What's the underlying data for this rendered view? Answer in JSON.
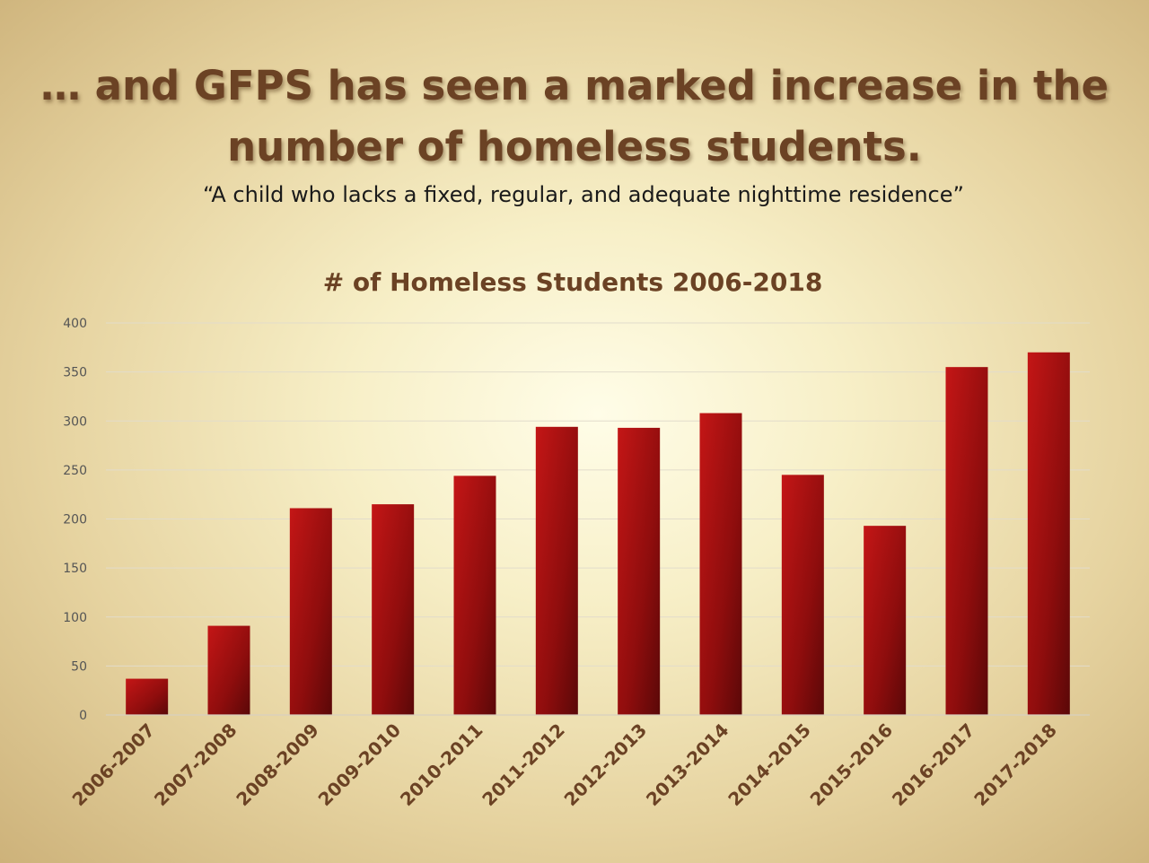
{
  "slide": {
    "title_line1": "… and GFPS has seen a marked increase in the",
    "title_line2": "number of homeless students.",
    "subtitle": "“A child who lacks a fixed, regular, and adequate nighttime residence”"
  },
  "chart_data": {
    "type": "bar",
    "title": "# of Homeless Students 2006-2018",
    "xlabel": "",
    "ylabel": "",
    "categories": [
      "2006-2007",
      "2007-2008",
      "2008-2009",
      "2009-2010",
      "2010-2011",
      "2011-2012",
      "2012-2013",
      "2013-2014",
      "2014-2015",
      "2015-2016",
      "2016-2017",
      "2017-2018"
    ],
    "values": [
      37,
      91,
      211,
      215,
      244,
      294,
      293,
      308,
      245,
      193,
      355,
      370
    ],
    "ylim": [
      0,
      400
    ],
    "yticks": [
      0,
      50,
      100,
      150,
      200,
      250,
      300,
      350,
      400
    ],
    "grid": true,
    "legend": "none",
    "bar_color": "#a80f0f"
  }
}
